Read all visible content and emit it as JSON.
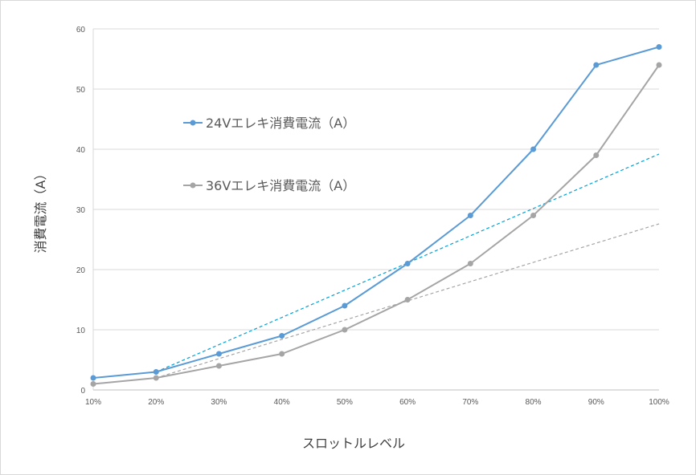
{
  "chart_data": {
    "type": "line",
    "title": "",
    "xlabel": "スロットルレベル",
    "ylabel": "消費電流（A）",
    "categories": [
      "10%",
      "20%",
      "30%",
      "40%",
      "50%",
      "60%",
      "70%",
      "80%",
      "90%",
      "100%"
    ],
    "ylim": [
      0,
      60
    ],
    "yticks": [
      0,
      10,
      20,
      30,
      40,
      50,
      60
    ],
    "grid": true,
    "legend_position": "upper-left inside plot",
    "series": [
      {
        "name": "24Vエレキ消費電流（A）",
        "color": "#5b9bd5",
        "values": [
          2,
          3,
          6,
          9,
          14,
          21,
          29,
          40,
          54,
          57
        ],
        "trendline": {
          "from": [
            1,
            3
          ],
          "to": [
            9,
            39.2
          ],
          "color": "#00a2d8"
        }
      },
      {
        "name": "36Vエレキ消費電流（A）",
        "color": "#a5a5a5",
        "values": [
          1,
          2,
          4,
          6,
          10,
          15,
          21,
          29,
          39,
          54
        ],
        "trendline": {
          "from": [
            1,
            2
          ],
          "to": [
            9,
            27.6
          ],
          "color": "#a5a5a5"
        }
      }
    ]
  }
}
